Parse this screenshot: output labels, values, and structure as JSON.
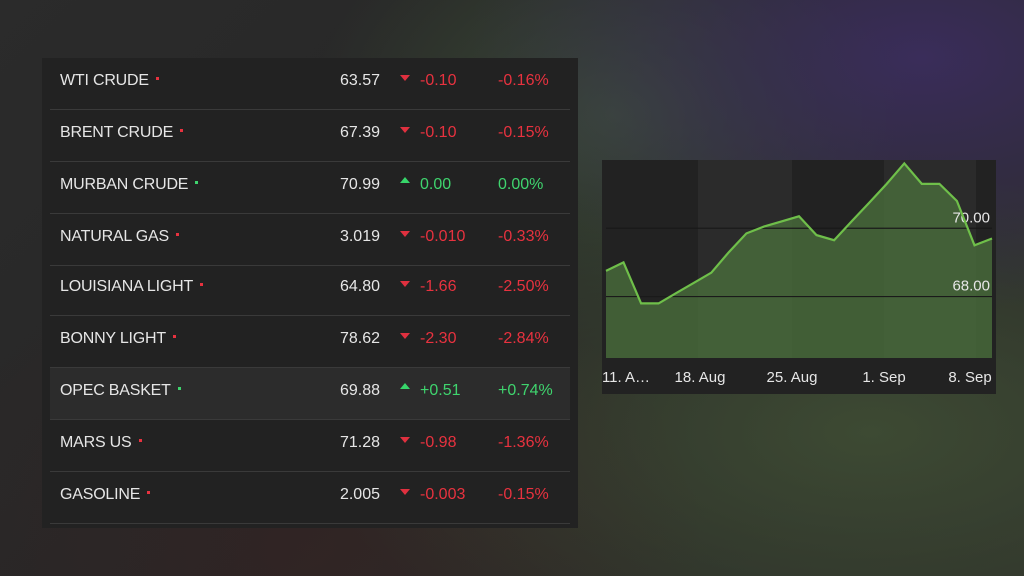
{
  "table": {
    "rows": [
      {
        "name": "WTI CRUDE",
        "price": "63.57",
        "change": "-0.10",
        "pct": "-0.16%",
        "dir": "down"
      },
      {
        "name": "BRENT CRUDE",
        "price": "67.39",
        "change": "-0.10",
        "pct": "-0.15%",
        "dir": "down"
      },
      {
        "name": "MURBAN CRUDE",
        "price": "70.99",
        "change": "0.00",
        "pct": "0.00%",
        "dir": "up"
      },
      {
        "name": "NATURAL GAS",
        "price": "3.019",
        "change": "-0.010",
        "pct": "-0.33%",
        "dir": "down"
      },
      {
        "name": "LOUISIANA LIGHT",
        "price": "64.80",
        "change": "-1.66",
        "pct": "-2.50%",
        "dir": "down"
      },
      {
        "name": "BONNY LIGHT",
        "price": "78.62",
        "change": "-2.30",
        "pct": "-2.84%",
        "dir": "down"
      },
      {
        "name": "OPEC BASKET",
        "price": "69.88",
        "change": "+0.51",
        "pct": "+0.74%",
        "dir": "up"
      },
      {
        "name": "MARS US",
        "price": "71.28",
        "change": "-0.98",
        "pct": "-1.36%",
        "dir": "down"
      },
      {
        "name": "GASOLINE",
        "price": "2.005",
        "change": "-0.003",
        "pct": "-0.15%",
        "dir": "down"
      }
    ]
  },
  "colors": {
    "up": "#3fd46e",
    "down": "#e8323f",
    "line": "#6fbf4a",
    "area": "#4a6e3c"
  },
  "chart_data": {
    "type": "area",
    "ylim": [
      66.2,
      72.0
    ],
    "y_ticks": [
      70.0,
      68.0
    ],
    "y_tick_labels": [
      "70.00",
      "68.00"
    ],
    "x_tick_labels": [
      "11. A…",
      "18. Aug",
      "25. Aug",
      "1. Sep",
      "8. Sep"
    ],
    "grid": true,
    "values": [
      68.75,
      69.0,
      67.8,
      67.8,
      68.1,
      68.4,
      68.7,
      69.3,
      69.85,
      70.05,
      70.2,
      70.35,
      69.8,
      69.65,
      70.2,
      70.75,
      71.3,
      71.9,
      71.3,
      71.3,
      70.8,
      69.5,
      69.7
    ]
  }
}
